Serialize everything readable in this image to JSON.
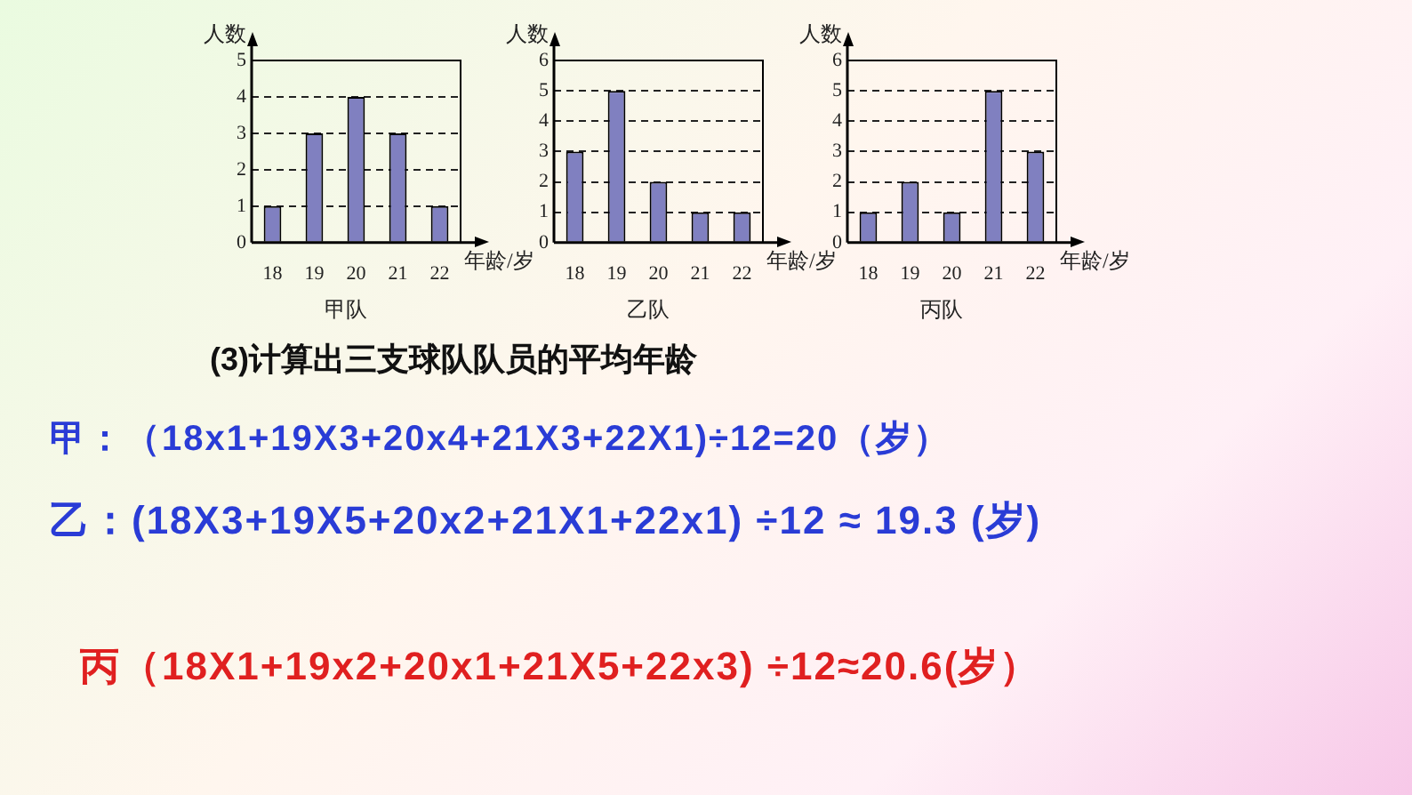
{
  "chart_data": [
    {
      "type": "bar",
      "title": "甲队",
      "xlabel": "年龄/岁",
      "ylabel": "人数",
      "categories": [
        "18",
        "19",
        "20",
        "21",
        "22"
      ],
      "values": [
        1,
        3,
        4,
        3,
        1
      ],
      "color": "#8080c0",
      "ylim": [
        0,
        5
      ],
      "yticks": [
        0,
        1,
        2,
        3,
        4,
        5
      ],
      "grid": "y"
    },
    {
      "type": "bar",
      "title": "乙队",
      "xlabel": "年龄/岁",
      "ylabel": "人数",
      "categories": [
        "18",
        "19",
        "20",
        "21",
        "22"
      ],
      "values": [
        3,
        5,
        2,
        1,
        1
      ],
      "color": "#8080c0",
      "ylim": [
        0,
        6
      ],
      "yticks": [
        0,
        1,
        2,
        3,
        4,
        5,
        6
      ],
      "grid": "y"
    },
    {
      "type": "bar",
      "title": "丙队",
      "xlabel": "年龄/岁",
      "ylabel": "人数",
      "categories": [
        "18",
        "19",
        "20",
        "21",
        "22"
      ],
      "values": [
        1,
        2,
        1,
        5,
        3
      ],
      "color": "#8080c0",
      "ylim": [
        0,
        6
      ],
      "yticks": [
        0,
        1,
        2,
        3,
        4,
        5,
        6
      ],
      "grid": "y"
    },
    {
      "type": "other",
      "annotations": [
        "(3)计算出三支球队队员的平均年龄",
        "甲：（18x1+19X3+20x4+21X3+22X1)÷12=20（岁）",
        "乙：(18X3+19X5+20x2+21X1+22x1) ÷12 ≈ 19.3 (岁)",
        "丙（18X1+19x2+20x1+21X5+22x3) ÷12≈20.6(岁）"
      ]
    }
  ]
}
